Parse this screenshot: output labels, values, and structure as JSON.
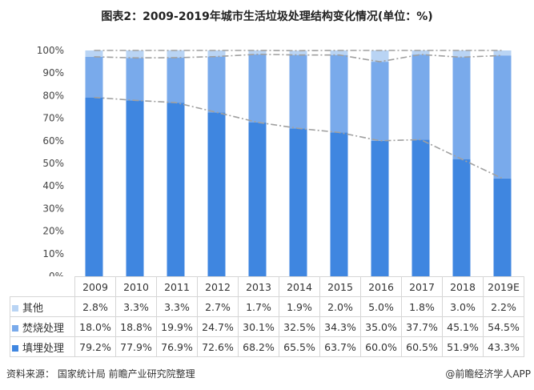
{
  "chart_data": {
    "type": "bar",
    "stacked": true,
    "title": "图表2：2009-2019年城市生活垃圾处理结构变化情况(单位：%)",
    "categories": [
      "2009",
      "2010",
      "2011",
      "2012",
      "2013",
      "2014",
      "2015",
      "2016",
      "2017",
      "2018",
      "2019E"
    ],
    "yticks": [
      "0%",
      "10%",
      "20%",
      "30%",
      "40%",
      "50%",
      "60%",
      "70%",
      "80%",
      "90%",
      "100%"
    ],
    "ylim": [
      0,
      100
    ],
    "series": [
      {
        "name": "填埋处理",
        "color": "#3f86e0",
        "values": [
          79.2,
          77.9,
          76.9,
          72.6,
          68.2,
          65.5,
          63.7,
          60.0,
          60.5,
          51.9,
          43.3
        ],
        "labels": [
          "79.2%",
          "77.9%",
          "76.9%",
          "72.6%",
          "68.2%",
          "65.5%",
          "63.7%",
          "60.0%",
          "60.5%",
          "51.9%",
          "43.3%"
        ]
      },
      {
        "name": "焚烧处理",
        "color": "#79aaeb",
        "values": [
          18.0,
          18.8,
          19.9,
          24.7,
          30.1,
          32.5,
          34.3,
          35.0,
          37.7,
          45.1,
          54.5
        ],
        "labels": [
          "18.0%",
          "18.8%",
          "19.9%",
          "24.7%",
          "30.1%",
          "32.5%",
          "34.3%",
          "35.0%",
          "37.7%",
          "45.1%",
          "54.5%"
        ]
      },
      {
        "name": "其他",
        "color": "#b9d4f4",
        "values": [
          2.8,
          3.3,
          3.3,
          2.7,
          1.7,
          1.9,
          2.0,
          5.0,
          1.8,
          3.0,
          2.2
        ],
        "labels": [
          "2.8%",
          "3.3%",
          "3.3%",
          "2.7%",
          "1.7%",
          "1.9%",
          "2.0%",
          "5.0%",
          "1.8%",
          "3.0%",
          "2.2%"
        ]
      }
    ],
    "trend_lines": "dash-dot, gray, through cumulative tops",
    "grid": false,
    "legend": "data table below chart"
  },
  "source": "资料来源：  国家统计局 前瞻产业研究院整理",
  "credit": "@前瞻经济学人APP"
}
